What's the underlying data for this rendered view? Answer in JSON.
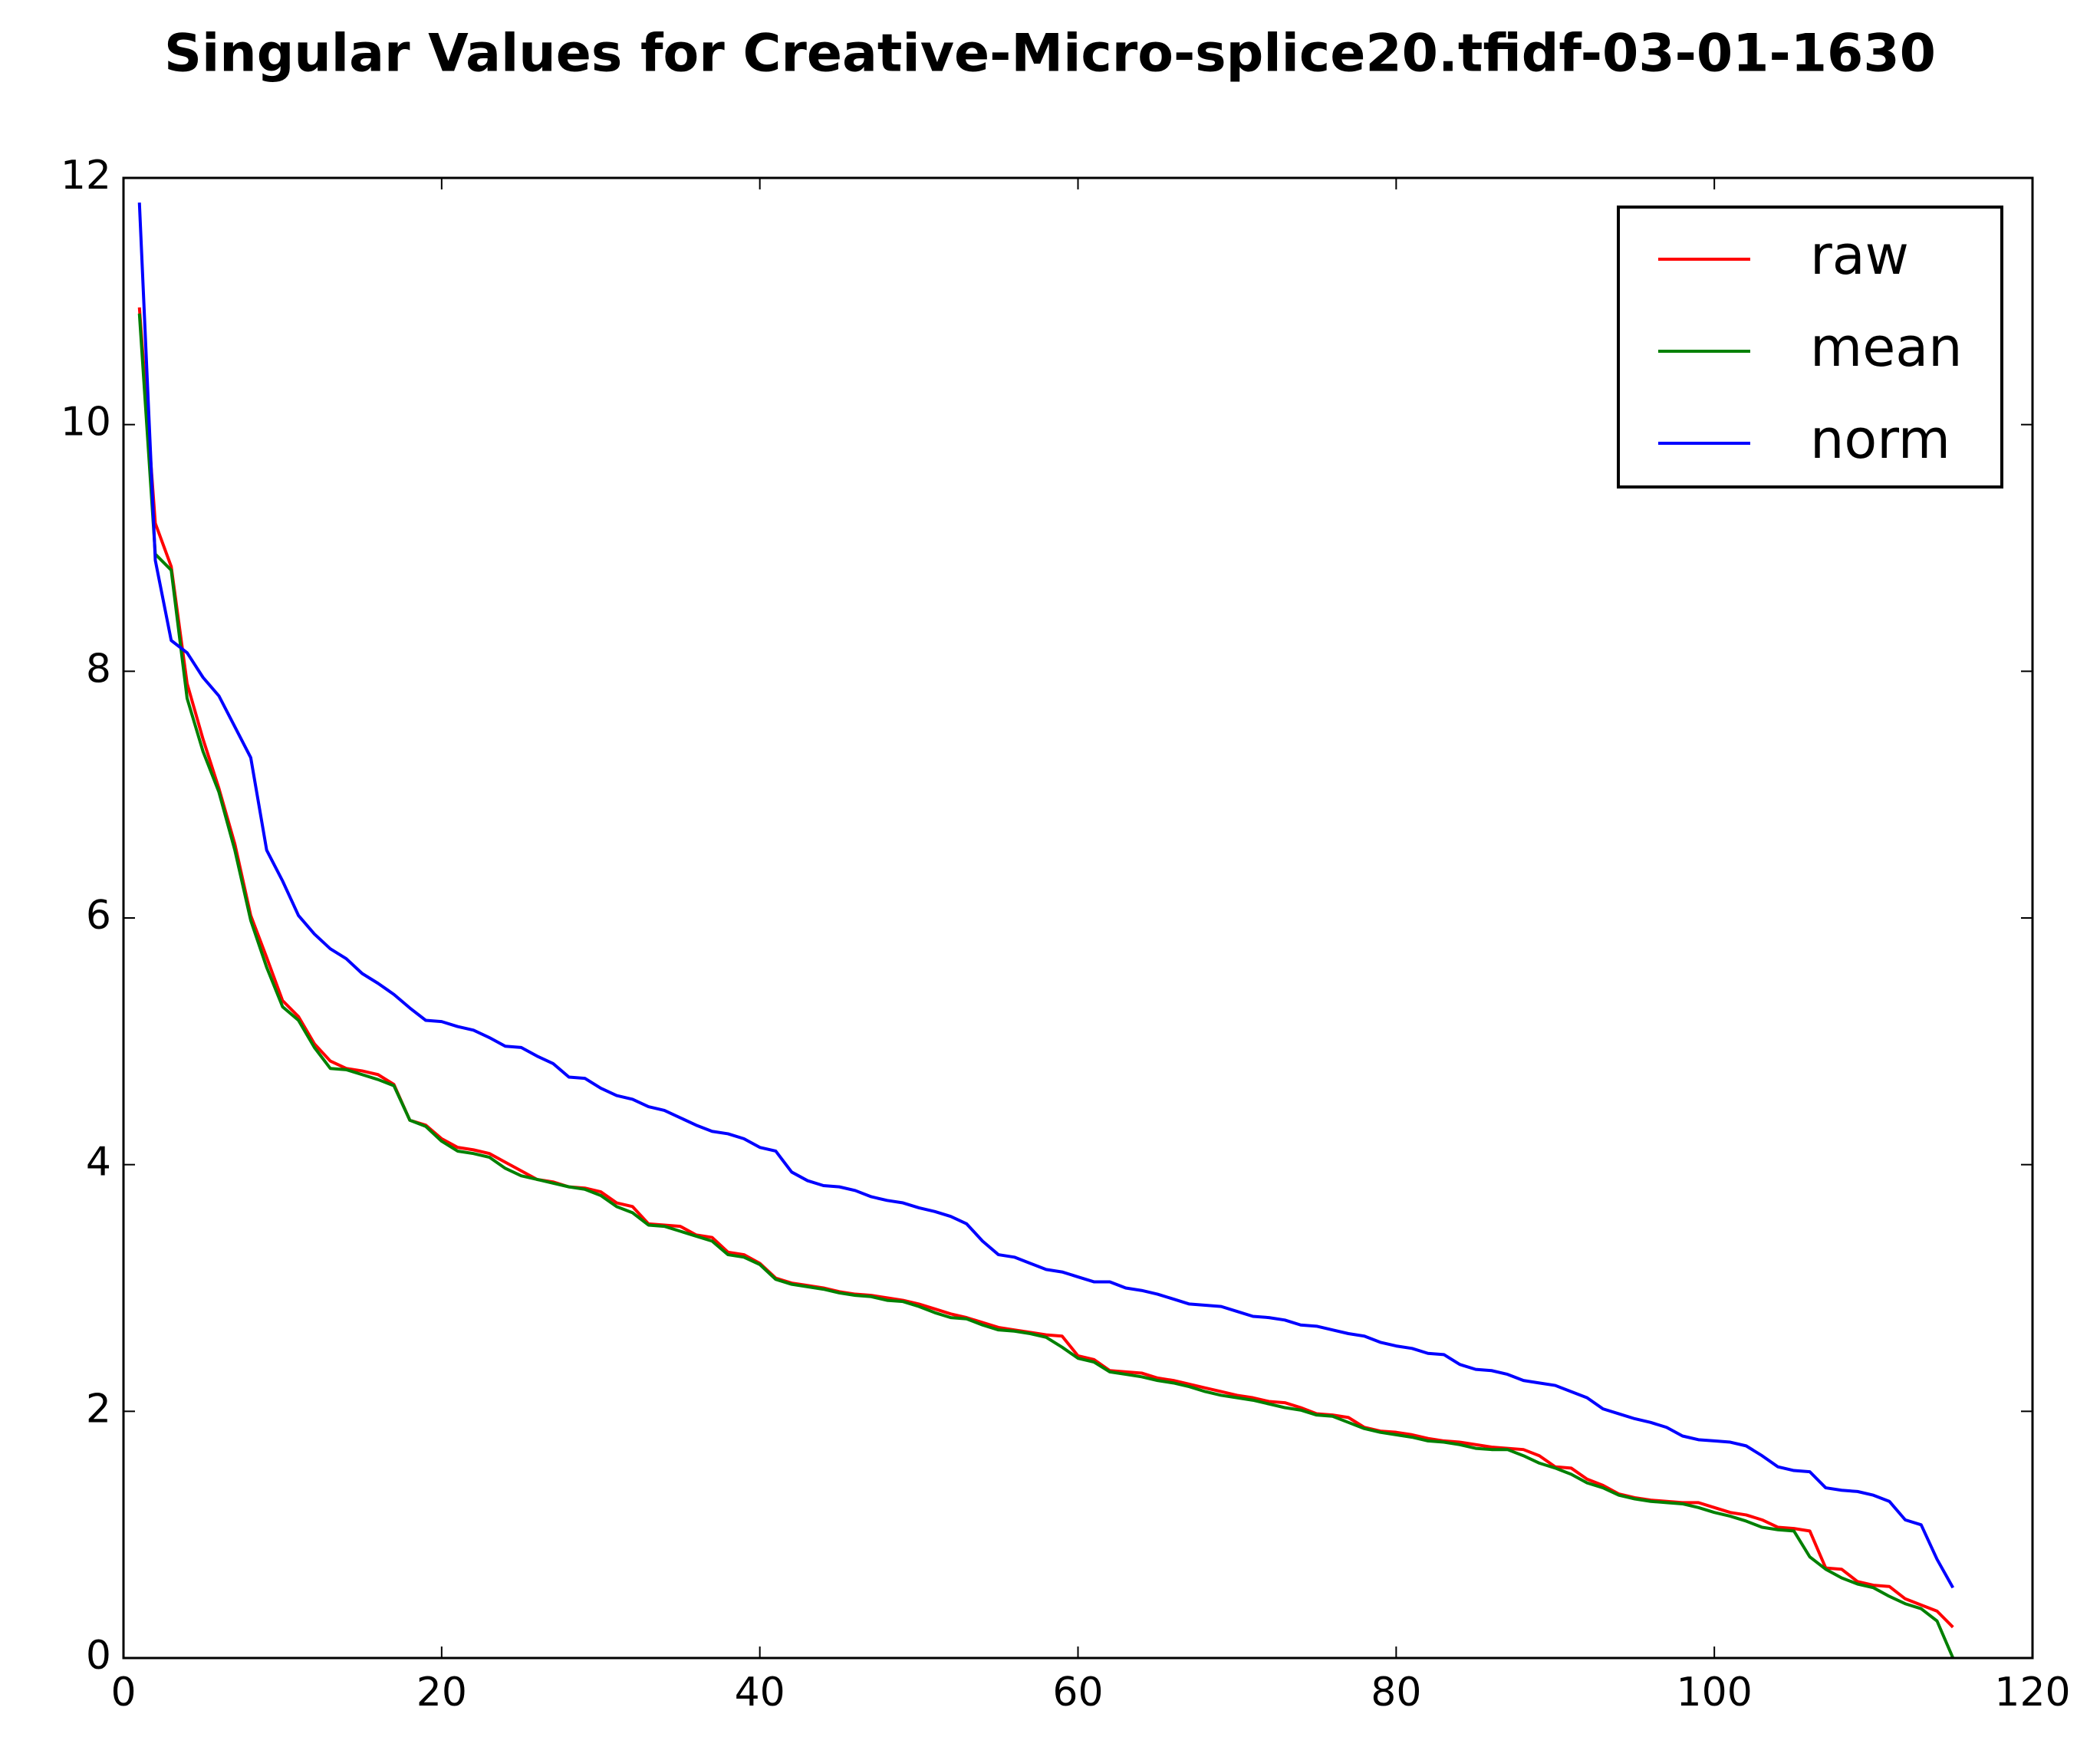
{
  "chart_data": {
    "type": "line",
    "title": "Singular Values for Creative-Micro-splice20.tfidf-03-01-1630",
    "x": [
      1,
      2,
      3,
      4,
      5,
      6,
      7,
      8,
      9,
      10,
      11,
      12,
      13,
      14,
      15,
      16,
      17,
      18,
      19,
      20,
      21,
      22,
      23,
      24,
      25,
      26,
      27,
      28,
      29,
      30,
      31,
      32,
      33,
      34,
      35,
      36,
      37,
      38,
      39,
      40,
      41,
      42,
      43,
      44,
      45,
      46,
      47,
      48,
      49,
      50,
      51,
      52,
      53,
      54,
      55,
      56,
      57,
      58,
      59,
      60,
      61,
      62,
      63,
      64,
      65,
      66,
      67,
      68,
      69,
      70,
      71,
      72,
      73,
      74,
      75,
      76,
      77,
      78,
      79,
      80,
      81,
      82,
      83,
      84,
      85,
      86,
      87,
      88,
      89,
      90,
      91,
      92,
      93,
      94,
      95,
      96,
      97,
      98,
      99,
      100,
      101,
      102,
      103,
      104,
      105,
      106,
      107,
      108,
      109,
      110,
      111,
      112,
      113,
      114,
      115
    ],
    "series": [
      {
        "name": "raw",
        "color": "#ff0000",
        "values": [
          10.95,
          9.2,
          8.85,
          7.9,
          7.45,
          7.05,
          6.6,
          6.02,
          5.68,
          5.33,
          5.2,
          4.98,
          4.84,
          4.78,
          4.76,
          4.73,
          4.65,
          4.36,
          4.32,
          4.21,
          4.14,
          4.12,
          4.09,
          4.02,
          3.95,
          3.88,
          3.86,
          3.82,
          3.81,
          3.78,
          3.69,
          3.66,
          3.52,
          3.51,
          3.5,
          3.43,
          3.41,
          3.29,
          3.27,
          3.2,
          3.08,
          3.04,
          3.02,
          3.0,
          2.97,
          2.95,
          2.94,
          2.92,
          2.9,
          2.87,
          2.83,
          2.79,
          2.76,
          2.72,
          2.68,
          2.66,
          2.64,
          2.62,
          2.61,
          2.45,
          2.42,
          2.33,
          2.32,
          2.31,
          2.27,
          2.25,
          2.22,
          2.19,
          2.16,
          2.13,
          2.11,
          2.08,
          2.07,
          2.03,
          1.98,
          1.97,
          1.95,
          1.87,
          1.84,
          1.83,
          1.81,
          1.78,
          1.76,
          1.75,
          1.73,
          1.71,
          1.7,
          1.69,
          1.64,
          1.55,
          1.54,
          1.45,
          1.4,
          1.33,
          1.3,
          1.28,
          1.27,
          1.26,
          1.26,
          1.22,
          1.18,
          1.16,
          1.12,
          1.06,
          1.05,
          1.03,
          0.73,
          0.72,
          0.62,
          0.59,
          0.58,
          0.48,
          0.43,
          0.38,
          0.25
        ]
      },
      {
        "name": "mean",
        "color": "#008000",
        "values": [
          10.9,
          8.95,
          8.82,
          7.78,
          7.35,
          7.02,
          6.55,
          5.98,
          5.6,
          5.28,
          5.17,
          4.95,
          4.78,
          4.77,
          4.73,
          4.69,
          4.64,
          4.36,
          4.31,
          4.19,
          4.11,
          4.09,
          4.06,
          3.97,
          3.91,
          3.88,
          3.85,
          3.82,
          3.8,
          3.75,
          3.66,
          3.61,
          3.51,
          3.5,
          3.46,
          3.42,
          3.38,
          3.27,
          3.25,
          3.19,
          3.07,
          3.03,
          3.01,
          2.99,
          2.96,
          2.94,
          2.93,
          2.9,
          2.89,
          2.85,
          2.8,
          2.76,
          2.75,
          2.7,
          2.66,
          2.65,
          2.63,
          2.6,
          2.52,
          2.43,
          2.4,
          2.32,
          2.3,
          2.28,
          2.25,
          2.23,
          2.2,
          2.16,
          2.13,
          2.11,
          2.09,
          2.06,
          2.03,
          2.01,
          1.97,
          1.96,
          1.91,
          1.86,
          1.83,
          1.81,
          1.79,
          1.76,
          1.75,
          1.73,
          1.7,
          1.69,
          1.69,
          1.64,
          1.58,
          1.54,
          1.49,
          1.42,
          1.38,
          1.32,
          1.29,
          1.27,
          1.26,
          1.25,
          1.22,
          1.18,
          1.15,
          1.11,
          1.06,
          1.04,
          1.03,
          0.82,
          0.72,
          0.65,
          0.6,
          0.57,
          0.5,
          0.44,
          0.4,
          0.3,
          0
        ]
      },
      {
        "name": "norm",
        "color": "#0000ff",
        "values": [
          11.8,
          8.9,
          8.25,
          8.15,
          7.95,
          7.8,
          7.55,
          7.3,
          6.55,
          6.3,
          6.02,
          5.87,
          5.75,
          5.67,
          5.55,
          5.47,
          5.38,
          5.27,
          5.17,
          5.16,
          5.12,
          5.09,
          5.03,
          4.96,
          4.95,
          4.88,
          4.82,
          4.71,
          4.7,
          4.62,
          4.56,
          4.53,
          4.47,
          4.44,
          4.38,
          4.32,
          4.27,
          4.25,
          4.21,
          4.14,
          4.11,
          3.94,
          3.87,
          3.83,
          3.82,
          3.79,
          3.74,
          3.71,
          3.69,
          3.65,
          3.62,
          3.58,
          3.52,
          3.38,
          3.27,
          3.25,
          3.2,
          3.15,
          3.13,
          3.09,
          3.05,
          3.05,
          3.0,
          2.98,
          2.95,
          2.91,
          2.87,
          2.86,
          2.85,
          2.81,
          2.77,
          2.76,
          2.74,
          2.7,
          2.69,
          2.66,
          2.63,
          2.61,
          2.56,
          2.53,
          2.51,
          2.47,
          2.46,
          2.38,
          2.34,
          2.33,
          2.3,
          2.25,
          2.23,
          2.21,
          2.16,
          2.11,
          2.02,
          1.98,
          1.94,
          1.91,
          1.87,
          1.8,
          1.77,
          1.76,
          1.75,
          1.72,
          1.64,
          1.55,
          1.52,
          1.51,
          1.38,
          1.36,
          1.35,
          1.32,
          1.27,
          1.12,
          1.08,
          0.8,
          0.57
        ]
      }
    ],
    "xlim": [
      0,
      120
    ],
    "xticks": [
      0,
      20,
      40,
      60,
      80,
      100,
      120
    ],
    "ylim": [
      0,
      12
    ],
    "yticks": [
      0,
      2,
      4,
      6,
      8,
      10,
      12
    ],
    "grid": false,
    "legend": "upper right"
  }
}
